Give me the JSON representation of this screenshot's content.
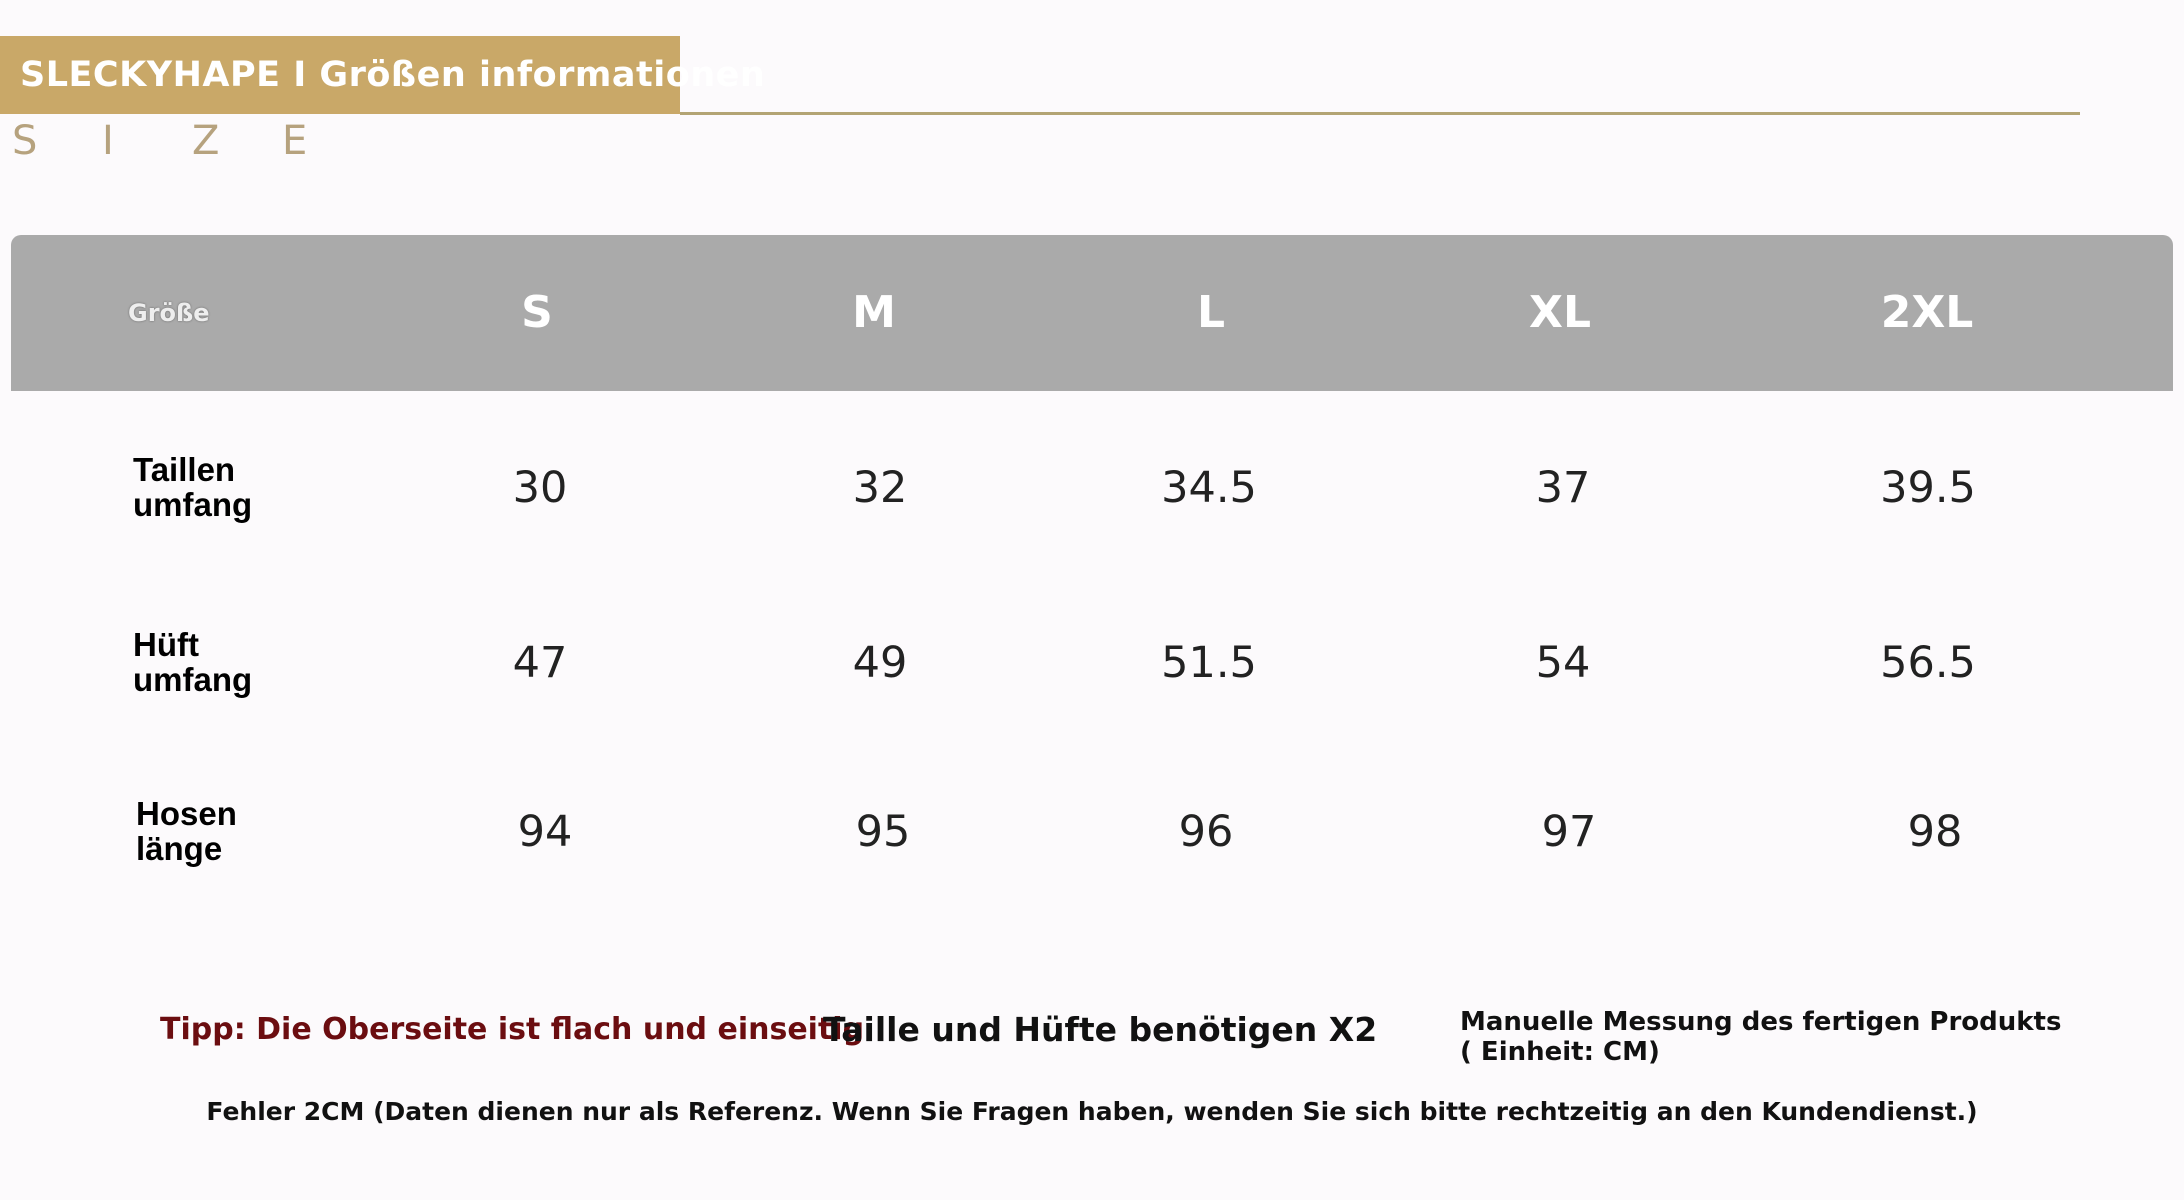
{
  "header": {
    "title": "SLECKYHAPE I Größen informationen",
    "size_letters": [
      "S",
      "I",
      "Z",
      "E"
    ]
  },
  "table": {
    "header_label": "Größe",
    "sizes": [
      "S",
      "M",
      "L",
      "XL",
      "2XL"
    ],
    "rows": [
      {
        "label_line1": "Taillen",
        "label_line2": "umfang",
        "values": [
          "30",
          "32",
          "34.5",
          "37",
          "39.5"
        ]
      },
      {
        "label_line1": "Hüft",
        "label_line2": "umfang",
        "values": [
          "47",
          "49",
          "51.5",
          "54",
          "56.5"
        ]
      },
      {
        "label_line1": "Hosen",
        "label_line2": "länge",
        "values": [
          "94",
          "95",
          "96",
          "97",
          "98"
        ]
      }
    ]
  },
  "notes": {
    "tip": "Tipp: Die Oberseite ist flach und einseitig",
    "x2": "Taille und Hüfte benötigen X2",
    "manual": "Manuelle Messung des fertigen Produkts ( Einheit: CM)",
    "error": "Fehler 2CM (Daten dienen nur als Referenz. Wenn Sie Fragen haben, wenden Sie sich bitte rechtzeitig an den Kundendienst.)"
  },
  "colors": {
    "banner": "#c9a868",
    "table_header": "#aaaaaa",
    "tip_text": "#6b0d10"
  }
}
